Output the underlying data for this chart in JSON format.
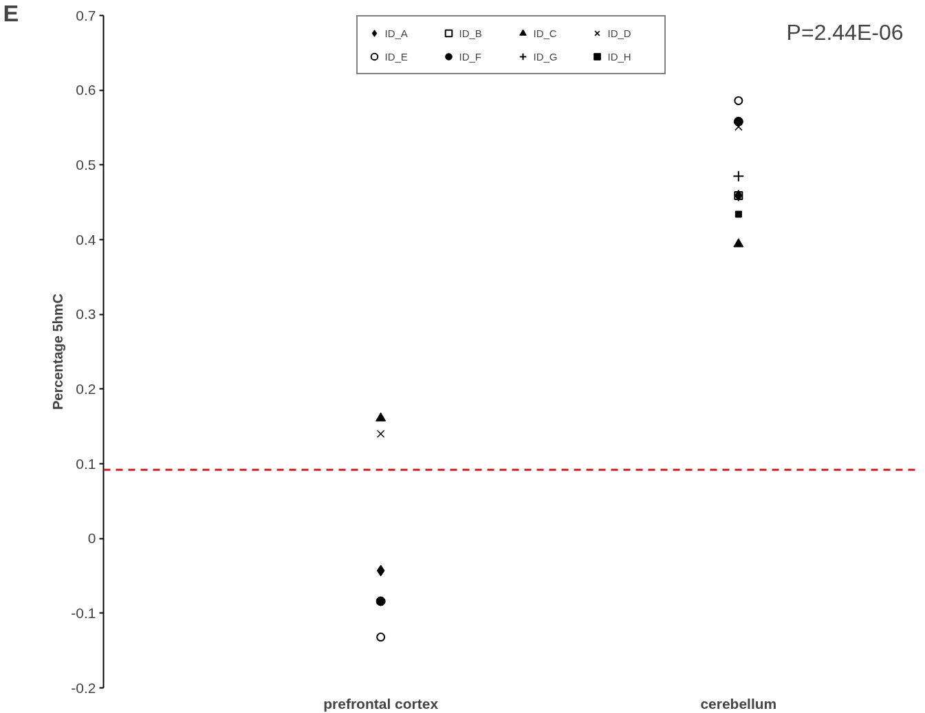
{
  "chart_data": {
    "type": "scatter",
    "categories": [
      "prefrontal cortex",
      "cerebellum"
    ],
    "ylabel": "Percentage 5hmC",
    "ylim": [
      -0.2,
      0.7
    ],
    "yticks": [
      -0.2,
      -0.1,
      0,
      0.1,
      0.2,
      0.3,
      0.4,
      0.5,
      0.6,
      0.7
    ],
    "grid": false,
    "legend": "top",
    "series": [
      {
        "name": "ID_A",
        "color": "#000000",
        "marker": "diamond",
        "values": [
          -0.043,
          0.459
        ]
      },
      {
        "name": "ID_B",
        "color": "#000000",
        "marker": "square_open",
        "values": [
          null,
          0.459
        ]
      },
      {
        "name": "ID_C",
        "color": "#000000",
        "marker": "triangle",
        "values": [
          0.161,
          0.394
        ]
      },
      {
        "name": "ID_D",
        "color": "#000000",
        "marker": "x",
        "values": [
          0.14,
          0.551
        ]
      },
      {
        "name": "ID_E",
        "color": "#000000",
        "marker": "circle_open",
        "values": [
          -0.132,
          0.586
        ]
      },
      {
        "name": "ID_F",
        "color": "#000000",
        "marker": "circle",
        "values": [
          -0.084,
          0.558
        ]
      },
      {
        "name": "ID_G",
        "color": "#000000",
        "marker": "plus",
        "values": [
          null,
          0.485
        ]
      },
      {
        "name": "ID_H",
        "color": "#000000",
        "marker": "square",
        "values": [
          null,
          0.434
        ]
      }
    ],
    "ref_lines": [
      {
        "axis": "y",
        "value": 0.092,
        "color": "#cc2222",
        "line_style": "dashed"
      }
    ],
    "annotations": [
      "P=2.44E-06",
      "E"
    ]
  }
}
